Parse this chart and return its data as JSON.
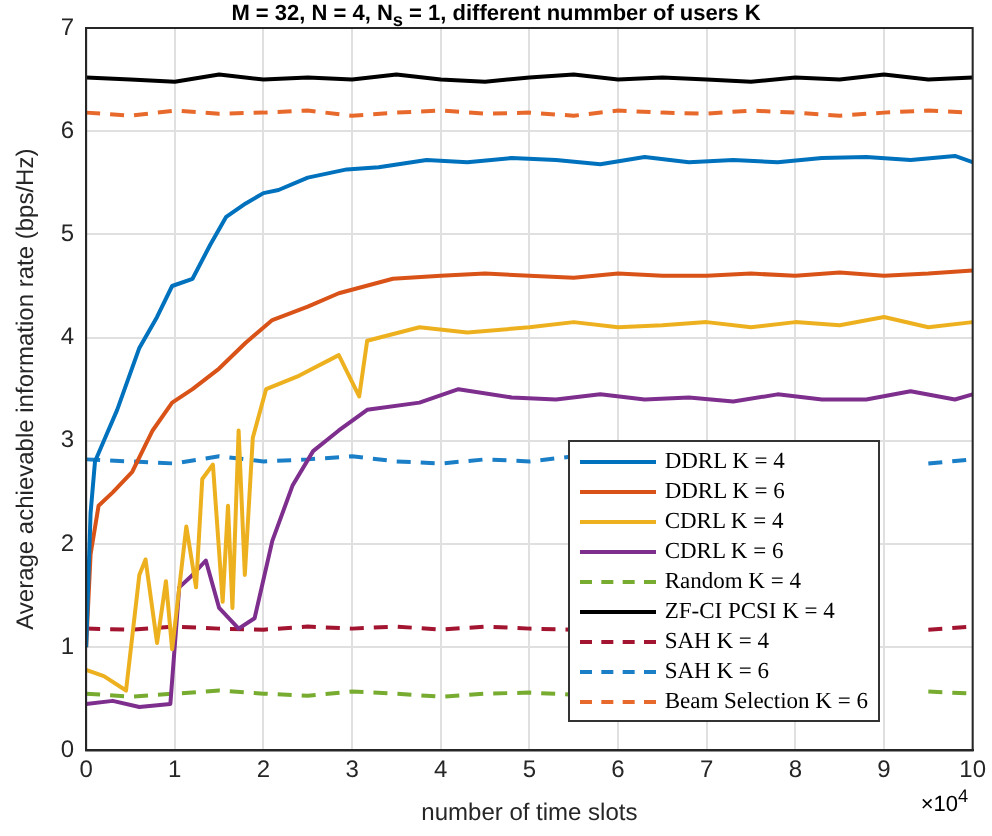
{
  "chart_data": {
    "type": "line",
    "title": "M = 32, N = 4, N$_{s}$ = 1, different nummber of users K",
    "xlabel": "number of time slots",
    "ylabel": "Average achievable information rate (bps/Hz)",
    "annotations": [
      "×10$^{4}$"
    ],
    "xlim": [
      0,
      10
    ],
    "xticks": [
      0,
      1,
      2,
      3,
      4,
      5,
      6,
      7,
      8,
      9,
      10
    ],
    "ylim": [
      0,
      7
    ],
    "yticks": [
      0,
      1,
      2,
      3,
      4,
      5,
      6,
      7
    ],
    "grid": true,
    "legend": "bottom right",
    "marker": "none",
    "series": [
      {
        "name": "DDRL K = 4",
        "color": "#0072bd",
        "line_style": "solid",
        "x": [
          0,
          0.05,
          0.1,
          0.2,
          0.35,
          0.6,
          0.8,
          0.97,
          1.2,
          1.4,
          1.58,
          1.8,
          2.0,
          2.17,
          2.5,
          2.94,
          3.3,
          3.84,
          4.3,
          4.8,
          5.3,
          5.8,
          6.3,
          6.8,
          7.3,
          7.8,
          8.3,
          8.8,
          9.3,
          9.8,
          10
        ],
        "values": [
          1.0,
          2.3,
          2.8,
          3.0,
          3.3,
          3.9,
          4.2,
          4.5,
          4.57,
          4.9,
          5.17,
          5.3,
          5.4,
          5.43,
          5.55,
          5.63,
          5.65,
          5.72,
          5.7,
          5.74,
          5.72,
          5.68,
          5.75,
          5.7,
          5.72,
          5.7,
          5.74,
          5.75,
          5.72,
          5.76,
          5.7
        ]
      },
      {
        "name": "DDRL K = 6",
        "color": "#d95319",
        "line_style": "solid",
        "x": [
          0,
          0.05,
          0.14,
          0.3,
          0.52,
          0.75,
          0.97,
          1.2,
          1.5,
          1.8,
          2.1,
          2.5,
          2.85,
          3.46,
          4,
          4.5,
          5,
          5.5,
          6,
          6.5,
          7,
          7.5,
          8,
          8.5,
          9,
          9.5,
          10
        ],
        "values": [
          1.0,
          1.9,
          2.37,
          2.5,
          2.7,
          3.1,
          3.37,
          3.5,
          3.7,
          3.95,
          4.17,
          4.3,
          4.43,
          4.57,
          4.6,
          4.62,
          4.6,
          4.58,
          4.62,
          4.6,
          4.6,
          4.62,
          4.6,
          4.63,
          4.6,
          4.62,
          4.65
        ]
      },
      {
        "name": "CDRL K = 4",
        "color": "#edb120",
        "line_style": "solid",
        "x": [
          0,
          0.2,
          0.45,
          0.6,
          0.67,
          0.8,
          0.9,
          0.97,
          1.13,
          1.24,
          1.31,
          1.43,
          1.54,
          1.6,
          1.65,
          1.72,
          1.79,
          1.88,
          2.03,
          2.4,
          2.85,
          3.08,
          3.17,
          3.76,
          4.3,
          5,
          5.5,
          6,
          6.5,
          7,
          7.5,
          8,
          8.5,
          9,
          9.5,
          10
        ],
        "values": [
          0.78,
          0.72,
          0.58,
          1.7,
          1.85,
          1.04,
          1.64,
          0.98,
          2.17,
          1.58,
          2.63,
          2.77,
          1.44,
          2.37,
          1.38,
          3.1,
          1.7,
          3.03,
          3.5,
          3.63,
          3.83,
          3.43,
          3.97,
          4.1,
          4.05,
          4.1,
          4.15,
          4.1,
          4.12,
          4.15,
          4.1,
          4.15,
          4.12,
          4.2,
          4.1,
          4.15
        ]
      },
      {
        "name": "CDRL K = 6",
        "color": "#7e2f8e",
        "line_style": "solid",
        "x": [
          0,
          0.3,
          0.6,
          0.95,
          1.05,
          1.2,
          1.35,
          1.5,
          1.72,
          1.9,
          2.1,
          2.33,
          2.56,
          2.85,
          3.17,
          3.76,
          4.2,
          4.8,
          5.3,
          5.8,
          6.3,
          6.8,
          7.3,
          7.8,
          8.3,
          8.8,
          9.3,
          9.8,
          10
        ],
        "values": [
          0.45,
          0.48,
          0.42,
          0.45,
          1.58,
          1.7,
          1.84,
          1.38,
          1.18,
          1.28,
          2.03,
          2.57,
          2.9,
          3.1,
          3.3,
          3.37,
          3.5,
          3.42,
          3.4,
          3.45,
          3.4,
          3.42,
          3.38,
          3.45,
          3.4,
          3.4,
          3.48,
          3.4,
          3.45
        ]
      },
      {
        "name": "Random K = 4",
        "color": "#77ac30",
        "line_style": "dashed",
        "x": [
          0,
          0.5,
          1,
          1.5,
          2,
          2.5,
          3,
          3.5,
          4,
          4.5,
          5,
          5.5,
          6,
          6.5,
          7,
          7.5,
          8,
          8.5,
          9,
          9.5,
          10
        ],
        "values": [
          0.55,
          0.52,
          0.55,
          0.58,
          0.55,
          0.53,
          0.57,
          0.55,
          0.52,
          0.55,
          0.56,
          0.54,
          null,
          null,
          null,
          null,
          null,
          null,
          null,
          0.57,
          0.55
        ]
      },
      {
        "name": "ZF-CI PCSI K = 4",
        "color": "#000000",
        "line_style": "solid",
        "x": [
          0,
          0.5,
          1,
          1.5,
          2,
          2.5,
          3,
          3.5,
          4,
          4.5,
          5,
          5.5,
          6,
          6.5,
          7,
          7.5,
          8,
          8.5,
          9,
          9.5,
          10
        ],
        "values": [
          6.52,
          6.5,
          6.48,
          6.55,
          6.5,
          6.52,
          6.5,
          6.55,
          6.5,
          6.48,
          6.52,
          6.55,
          6.5,
          6.52,
          6.5,
          6.48,
          6.52,
          6.5,
          6.55,
          6.5,
          6.52
        ]
      },
      {
        "name": "SAH K = 4",
        "color": "#a2142f",
        "line_style": "dashed",
        "x": [
          0,
          0.5,
          1,
          1.5,
          2,
          2.5,
          3,
          3.5,
          4,
          4.5,
          5,
          5.5,
          6,
          6.5,
          7,
          7.5,
          8,
          8.5,
          9,
          9.5,
          10
        ],
        "values": [
          1.18,
          1.17,
          1.2,
          1.18,
          1.17,
          1.2,
          1.18,
          1.2,
          1.17,
          1.2,
          1.18,
          1.17,
          null,
          null,
          null,
          null,
          null,
          null,
          null,
          1.17,
          1.2
        ]
      },
      {
        "name": "SAH K = 6",
        "color": "#1a7fc7",
        "line_style": "dashed",
        "x": [
          0,
          0.5,
          1,
          1.5,
          2,
          2.5,
          3,
          3.5,
          4,
          4.5,
          5,
          5.5,
          6,
          6.5,
          7,
          7.5,
          8,
          8.5,
          9,
          9.5,
          10
        ],
        "values": [
          2.82,
          2.8,
          2.78,
          2.85,
          2.8,
          2.82,
          2.85,
          2.8,
          2.78,
          2.82,
          2.8,
          2.85,
          null,
          null,
          null,
          null,
          null,
          null,
          null,
          2.78,
          2.82
        ]
      },
      {
        "name": "Beam Selection K = 6",
        "color": "#e8692c",
        "line_style": "dashed",
        "x": [
          0,
          0.5,
          1,
          1.5,
          2,
          2.5,
          3,
          3.5,
          4,
          4.5,
          5,
          5.5,
          6,
          6.5,
          7,
          7.5,
          8,
          8.5,
          9,
          9.5,
          10
        ],
        "values": [
          6.18,
          6.15,
          6.2,
          6.17,
          6.18,
          6.2,
          6.15,
          6.18,
          6.2,
          6.17,
          6.18,
          6.15,
          6.2,
          6.18,
          6.17,
          6.2,
          6.18,
          6.15,
          6.18,
          6.2,
          6.18
        ]
      }
    ]
  }
}
